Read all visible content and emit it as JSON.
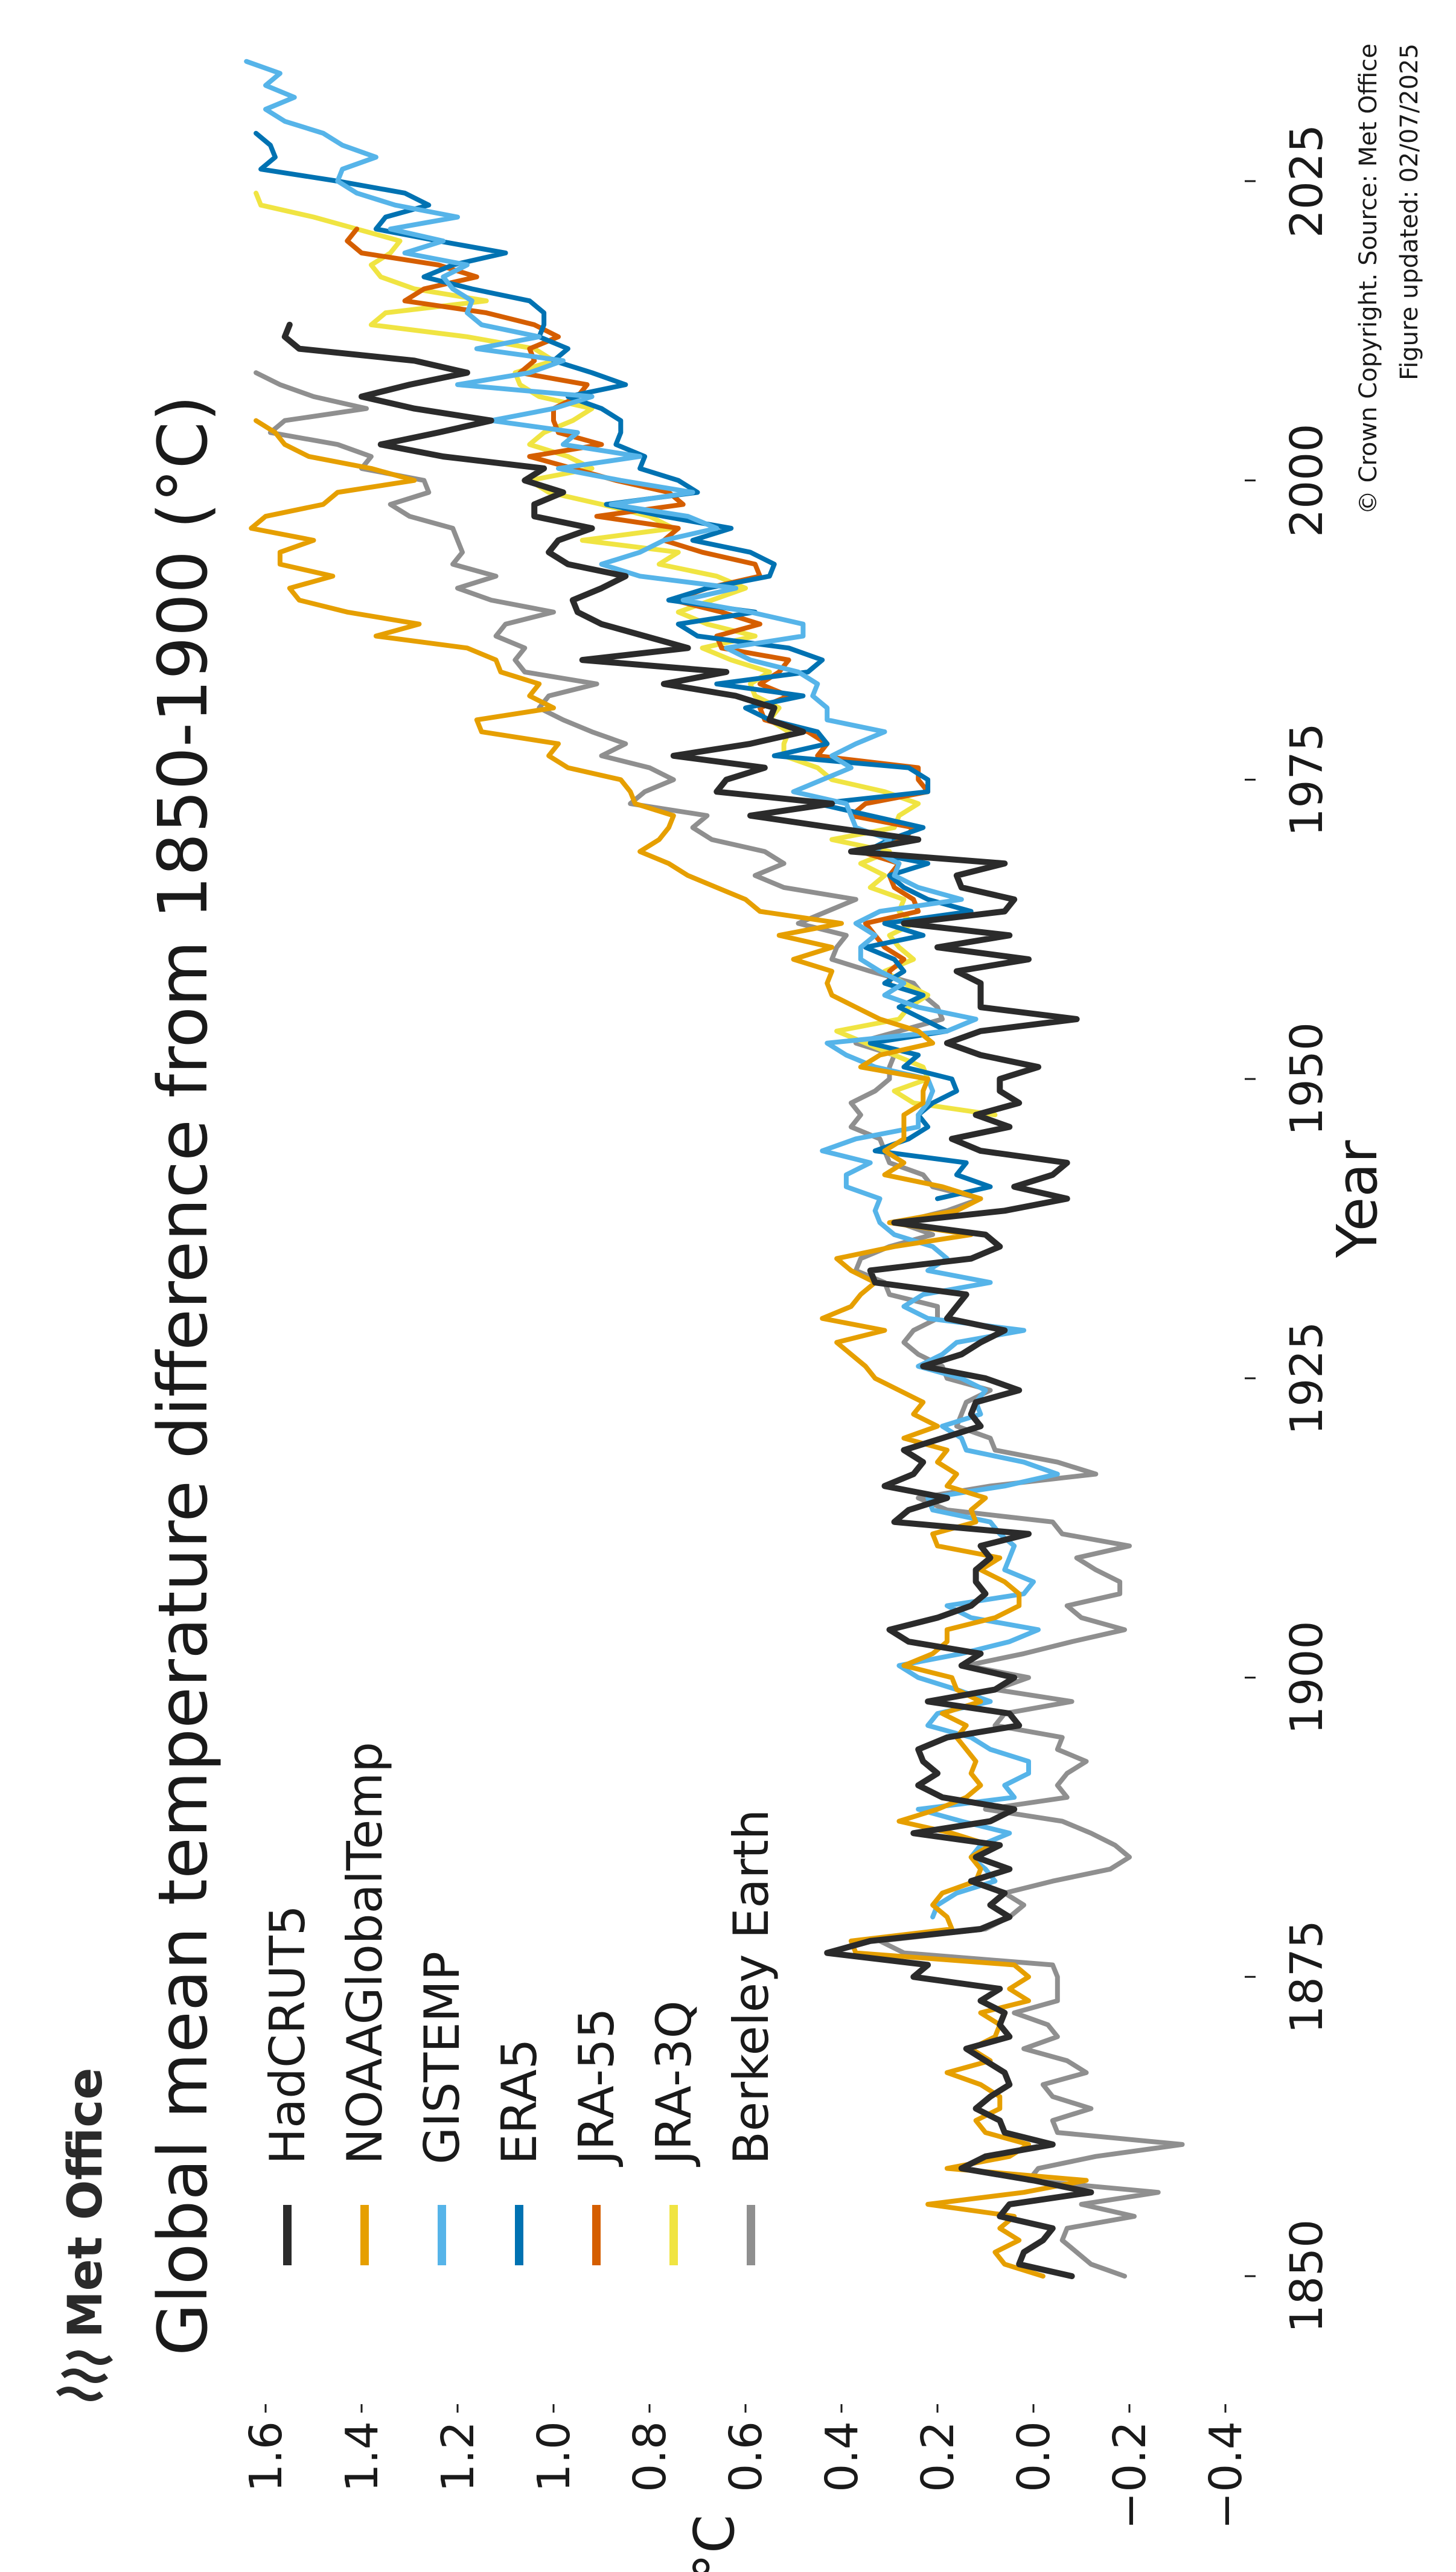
{
  "logo_text": "Met Office",
  "credits": {
    "line1": "© Crown Copyright. Source: Met Office",
    "line2": "Figure updated: 02/07/2025"
  },
  "chart_data": {
    "type": "line",
    "title": "Global mean temperature difference from 1850-1900 (°C)",
    "xlabel": "Year",
    "ylabel": "°C",
    "xlim": [
      1845,
      2033
    ],
    "ylim": [
      -0.45,
      1.65
    ],
    "xticks": [
      1850,
      1875,
      1900,
      1925,
      1950,
      1975,
      2000,
      2025
    ],
    "yticks": [
      -0.4,
      -0.2,
      0.0,
      0.2,
      0.4,
      0.6,
      0.8,
      1.0,
      1.2,
      1.4,
      1.6
    ],
    "ytick_labels": [
      "−0.4",
      "−0.2",
      "0.0",
      "0.2",
      "0.4",
      "0.6",
      "0.8",
      "1.0",
      "1.2",
      "1.4",
      "1.6"
    ],
    "orientation": "rotated 90 degrees counter-clockwise",
    "grid": false,
    "legend_position": "top-left",
    "series": [
      {
        "name": "HadCRUT5",
        "color": "#2b2b2b",
        "x_start": 1850,
        "values": [
          -0.08,
          0.03,
          0.02,
          -0.02,
          -0.04,
          0.07,
          0.05,
          -0.12,
          0.0,
          0.15,
          0.1,
          -0.04,
          0.06,
          0.07,
          0.12,
          0.09,
          0.05,
          0.06,
          0.1,
          0.14,
          0.05,
          0.07,
          0.06,
          0.11,
          0.07,
          0.25,
          0.22,
          0.43,
          0.34,
          0.11,
          0.05,
          0.09,
          0.06,
          0.13,
          0.05,
          0.12,
          0.07,
          0.25,
          0.09,
          0.04,
          0.19,
          0.24,
          0.2,
          0.23,
          0.24,
          0.18,
          0.03,
          0.05,
          0.22,
          0.08,
          0.04,
          0.15,
          0.11,
          0.26,
          0.3,
          0.2,
          0.13,
          0.1,
          0.12,
          0.12,
          0.09,
          0.11,
          0.01,
          0.29,
          0.26,
          0.18,
          0.31,
          0.25,
          0.23,
          0.27,
          0.19,
          0.11,
          0.13,
          0.12,
          0.03,
          0.1,
          0.23,
          0.15,
          0.11,
          0.06,
          0.18,
          0.16,
          0.14,
          0.33,
          0.34,
          0.13,
          0.07,
          0.1,
          0.29,
          0.06,
          -0.07,
          0.04,
          -0.04,
          -0.07,
          0.11,
          0.17,
          0.05,
          0.12,
          0.03,
          0.07,
          0.07,
          -0.01,
          0.11,
          0.18,
          0.11,
          -0.09,
          0.11,
          0.11,
          0.11,
          0.16,
          0.01,
          0.2,
          0.05,
          0.27,
          0.06,
          0.04,
          0.15,
          0.16,
          0.06,
          0.38,
          0.24,
          0.42,
          0.59,
          0.42,
          0.66,
          0.64,
          0.56,
          0.75,
          0.59,
          0.48,
          0.55,
          0.54,
          0.62,
          0.77,
          0.64,
          0.94,
          0.72,
          0.81,
          0.9,
          0.95,
          0.96,
          0.9,
          0.85,
          0.97,
          1.01,
          0.99,
          0.92,
          1.04,
          1.04,
          0.98,
          1.06,
          1.02,
          1.23,
          1.36,
          1.24,
          1.13,
          1.29,
          1.4,
          1.3,
          1.18,
          1.29,
          1.53,
          1.56,
          1.55
        ]
      },
      {
        "name": "NOAAGlobalTemp",
        "color": "#e69f00",
        "x_start": 1850,
        "values": [
          -0.02,
          0.06,
          0.08,
          0.03,
          0.07,
          0.04,
          0.22,
          0.02,
          -0.11,
          0.18,
          0.05,
          0.01,
          0.1,
          0.12,
          0.07,
          0.07,
          0.11,
          0.18,
          0.09,
          0.13,
          0.08,
          0.07,
          0.11,
          0.01,
          0.05,
          0.01,
          0.04,
          0.37,
          0.38,
          0.17,
          0.18,
          0.21,
          0.19,
          0.12,
          0.11,
          0.13,
          0.09,
          0.17,
          0.28,
          0.2,
          0.14,
          0.11,
          0.13,
          0.12,
          0.14,
          0.16,
          0.14,
          0.19,
          0.11,
          0.16,
          0.17,
          0.27,
          0.21,
          0.18,
          0.18,
          0.08,
          0.03,
          0.03,
          0.06,
          0.11,
          0.07,
          0.2,
          0.21,
          0.12,
          0.13,
          0.1,
          0.18,
          0.16,
          0.2,
          0.18,
          0.27,
          0.2,
          0.25,
          0.23,
          0.28,
          0.33,
          0.35,
          0.38,
          0.41,
          0.31,
          0.44,
          0.38,
          0.36,
          0.33,
          0.38,
          0.41,
          0.29,
          0.13,
          0.3,
          0.16,
          0.11,
          0.19,
          0.31,
          0.27,
          0.31,
          0.27,
          0.27,
          0.27,
          0.23,
          0.23,
          0.22,
          0.36,
          0.32,
          0.21,
          0.24,
          0.32,
          0.37,
          0.42,
          0.43,
          0.42,
          0.5,
          0.42,
          0.53,
          0.4,
          0.57,
          0.6,
          0.66,
          0.72,
          0.76,
          0.82,
          0.78,
          0.76,
          0.75,
          0.83,
          0.84,
          0.86,
          0.97,
          1.01,
          0.99,
          1.15,
          1.16,
          1.0,
          1.05,
          1.03,
          1.11,
          1.12,
          1.18,
          1.37,
          1.28,
          1.43,
          1.53,
          1.55,
          1.46,
          1.57,
          1.57,
          1.5,
          1.63,
          1.6,
          1.48,
          1.45,
          1.29,
          1.38,
          1.51,
          1.56,
          1.58,
          1.62
        ]
      },
      {
        "name": "GISTEMP",
        "color": "#56b4e9",
        "x_start": 1880,
        "values": [
          0.21,
          0.2,
          0.16,
          0.08,
          0.1,
          0.13,
          0.11,
          0.05,
          0.15,
          0.24,
          0.04,
          0.06,
          0.01,
          0.01,
          0.09,
          0.13,
          0.22,
          0.2,
          0.09,
          0.16,
          0.24,
          0.28,
          0.15,
          0.05,
          -0.01,
          0.13,
          0.18,
          0.02,
          0.0,
          0.06,
          0.05,
          0.04,
          0.07,
          0.09,
          0.21,
          0.22,
          0.06,
          -0.05,
          0.02,
          0.14,
          0.15,
          0.19,
          0.11,
          0.12,
          0.1,
          0.15,
          0.24,
          0.19,
          0.16,
          0.02,
          0.22,
          0.27,
          0.23,
          0.09,
          0.22,
          0.18,
          0.21,
          0.29,
          0.32,
          0.33,
          0.32,
          0.39,
          0.39,
          0.34,
          0.44,
          0.37,
          0.24,
          0.24,
          0.22,
          0.21,
          0.22,
          0.33,
          0.39,
          0.43,
          0.18,
          0.12,
          0.24,
          0.31,
          0.27,
          0.32,
          0.36,
          0.36,
          0.33,
          0.37,
          0.32,
          0.15,
          0.24,
          0.29,
          0.28,
          0.33,
          0.3,
          0.37,
          0.38,
          0.39,
          0.5,
          0.44,
          0.38,
          0.42,
          0.37,
          0.31,
          0.43,
          0.43,
          0.46,
          0.45,
          0.49,
          0.59,
          0.64,
          0.48,
          0.48,
          0.59,
          0.73,
          0.62,
          0.82,
          0.9,
          0.82,
          0.77,
          0.66,
          0.72,
          0.88,
          0.71,
          0.86,
          0.99,
          0.82,
          0.98,
          0.95,
          1.13,
          1.0,
          0.92,
          1.2,
          1.05,
          0.98,
          1.16,
          1.03,
          1.15,
          1.18,
          1.17,
          1.21,
          1.23,
          1.18,
          1.31,
          1.23,
          1.34,
          1.2,
          1.33,
          1.41,
          1.45,
          1.44,
          1.37,
          1.44,
          1.48,
          1.56,
          1.6,
          1.54,
          1.6,
          1.57,
          1.64
        ]
      },
      {
        "name": "ERA5",
        "color": "#0072b2",
        "x_start": 1940,
        "values": [
          0.2,
          0.09,
          0.16,
          0.14,
          0.33,
          0.26,
          0.22,
          0.24,
          0.21,
          0.16,
          0.17,
          0.27,
          0.24,
          0.34,
          0.18,
          0.23,
          0.28,
          0.23,
          0.31,
          0.27,
          0.29,
          0.35,
          0.23,
          0.31,
          0.13,
          0.22,
          0.27,
          0.3,
          0.22,
          0.35,
          0.3,
          0.23,
          0.34,
          0.45,
          0.22,
          0.22,
          0.26,
          0.54,
          0.43,
          0.45,
          0.55,
          0.6,
          0.48,
          0.66,
          0.47,
          0.44,
          0.51,
          0.7,
          0.74,
          0.58,
          0.76,
          0.68,
          0.55,
          0.54,
          0.59,
          0.71,
          0.63,
          0.77,
          0.89,
          0.7,
          0.74,
          0.82,
          0.81,
          0.87,
          0.86,
          0.86,
          0.9,
          0.97,
          0.85,
          0.92,
          1.0,
          0.97,
          1.03,
          1.02,
          1.02,
          1.05,
          1.17,
          1.27,
          1.21,
          1.1,
          1.24,
          1.37,
          1.35,
          1.26,
          1.31,
          1.45,
          1.61,
          1.58,
          1.59,
          1.62
        ]
      },
      {
        "name": "JRA-55",
        "color": "#d55e00",
        "x_start": 1958,
        "values": [
          0.3,
          0.3,
          0.27,
          0.31,
          0.33,
          0.35,
          0.24,
          0.25,
          0.29,
          0.3,
          0.28,
          0.36,
          0.27,
          0.25,
          0.38,
          0.35,
          0.22,
          0.24,
          0.24,
          0.45,
          0.43,
          0.47,
          0.56,
          0.57,
          0.51,
          0.57,
          0.53,
          0.51,
          0.65,
          0.66,
          0.57,
          0.65,
          0.75,
          0.68,
          0.57,
          0.58,
          0.69,
          0.77,
          0.74,
          0.91,
          0.73,
          0.76,
          0.87,
          0.96,
          1.05,
          0.9,
          0.99,
          1.0,
          1.0,
          0.95,
          0.93,
          1.07,
          1.04,
          1.05,
          0.99,
          1.04,
          1.14,
          1.31,
          1.27,
          1.16,
          1.24,
          1.4,
          1.43,
          1.41
        ]
      },
      {
        "name": "JRA-3Q",
        "color": "#f0e442",
        "x_start": 1947,
        "values": [
          0.08,
          0.25,
          0.29,
          0.22,
          0.23,
          0.29,
          0.35,
          0.41,
          0.28,
          0.26,
          0.22,
          0.27,
          0.31,
          0.25,
          0.28,
          0.3,
          0.25,
          0.28,
          0.27,
          0.34,
          0.31,
          0.36,
          0.3,
          0.42,
          0.29,
          0.28,
          0.24,
          0.31,
          0.42,
          0.45,
          0.52,
          0.52,
          0.51,
          0.55,
          0.53,
          0.58,
          0.59,
          0.55,
          0.63,
          0.69,
          0.58,
          0.68,
          0.74,
          0.67,
          0.6,
          0.66,
          0.78,
          0.74,
          0.94,
          0.75,
          0.8,
          0.9,
          1.01,
          1.05,
          0.92,
          0.97,
          1.05,
          1.02,
          0.96,
          0.92,
          1.03,
          1.07,
          1.08,
          1.0,
          1.04,
          1.18,
          1.38,
          1.35,
          1.14,
          1.29,
          1.36,
          1.38,
          1.34,
          1.32,
          1.41,
          1.5,
          1.61,
          1.62
        ]
      },
      {
        "name": "Berkeley Earth",
        "color": "#8f8f8f",
        "x_start": 1850,
        "values": [
          -0.19,
          -0.12,
          -0.09,
          -0.06,
          -0.07,
          -0.21,
          -0.1,
          -0.26,
          0.01,
          -0.01,
          -0.13,
          -0.31,
          -0.05,
          -0.04,
          -0.12,
          -0.04,
          -0.02,
          -0.11,
          -0.07,
          0.02,
          -0.05,
          -0.03,
          0.04,
          -0.05,
          -0.05,
          -0.05,
          -0.04,
          0.27,
          0.32,
          0.1,
          0.05,
          0.02,
          0.06,
          -0.04,
          -0.16,
          -0.2,
          -0.17,
          -0.12,
          -0.06,
          0.1,
          -0.07,
          -0.05,
          -0.07,
          -0.11,
          -0.05,
          -0.06,
          0.08,
          0.06,
          -0.08,
          0.08,
          0.01,
          0.14,
          0.02,
          -0.08,
          -0.19,
          -0.1,
          -0.07,
          -0.18,
          -0.18,
          -0.13,
          -0.09,
          -0.2,
          -0.06,
          -0.04,
          0.18,
          0.24,
          0.09,
          -0.13,
          -0.05,
          0.08,
          0.09,
          0.16,
          0.15,
          0.14,
          0.09,
          0.18,
          0.19,
          0.24,
          0.27,
          0.25,
          0.2,
          0.2,
          0.3,
          0.31,
          0.37,
          0.36,
          0.3,
          0.21,
          0.28,
          0.18,
          0.11,
          0.21,
          0.23,
          0.3,
          0.31,
          0.32,
          0.38,
          0.36,
          0.38,
          0.33,
          0.3,
          0.3,
          0.29,
          0.37,
          0.28,
          0.19,
          0.2,
          0.23,
          0.25,
          0.34,
          0.42,
          0.41,
          0.39,
          0.49,
          0.43,
          0.37,
          0.52,
          0.58,
          0.52,
          0.56,
          0.67,
          0.71,
          0.68,
          0.84,
          0.81,
          0.75,
          0.8,
          0.9,
          0.85,
          0.92,
          0.98,
          1.03,
          1.01,
          0.91,
          1.06,
          1.08,
          1.06,
          1.12,
          1.1,
          1.0,
          1.13,
          1.2,
          1.12,
          1.21,
          1.19,
          1.2,
          1.21,
          1.3,
          1.34,
          1.26,
          1.27,
          1.4,
          1.38,
          1.45,
          1.59,
          1.56,
          1.39,
          1.5,
          1.57,
          1.62
        ]
      }
    ]
  }
}
